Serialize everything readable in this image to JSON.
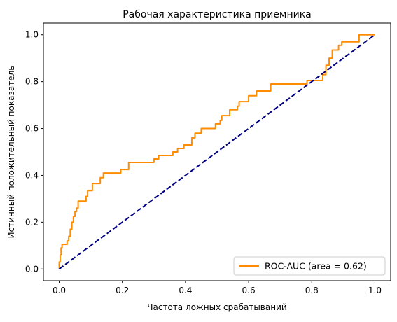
{
  "chart_data": {
    "type": "line",
    "title": "Рабочая характеристика приемника",
    "xlabel": "Частота ложных срабатываний",
    "ylabel": "Истинный положительный показатель",
    "xlim": [
      -0.05,
      1.05
    ],
    "ylim": [
      -0.05,
      1.05
    ],
    "xticks": [
      "0.0",
      "0.2",
      "0.4",
      "0.6",
      "0.8",
      "1.0"
    ],
    "yticks": [
      "0.0",
      "0.2",
      "0.4",
      "0.6",
      "0.8",
      "1.0"
    ],
    "grid": false,
    "legend_position": "lower-right",
    "series": [
      {
        "name": "ROC-AUC (area = 0.62)",
        "color": "#ff8c00",
        "style": "solid",
        "points": [
          [
            0.0,
            0.0
          ],
          [
            0.0,
            0.03
          ],
          [
            0.003,
            0.03
          ],
          [
            0.003,
            0.06
          ],
          [
            0.006,
            0.06
          ],
          [
            0.006,
            0.09
          ],
          [
            0.009,
            0.09
          ],
          [
            0.009,
            0.105
          ],
          [
            0.025,
            0.105
          ],
          [
            0.025,
            0.12
          ],
          [
            0.03,
            0.12
          ],
          [
            0.03,
            0.14
          ],
          [
            0.035,
            0.14
          ],
          [
            0.035,
            0.17
          ],
          [
            0.04,
            0.17
          ],
          [
            0.04,
            0.2
          ],
          [
            0.045,
            0.2
          ],
          [
            0.045,
            0.225
          ],
          [
            0.05,
            0.225
          ],
          [
            0.05,
            0.245
          ],
          [
            0.055,
            0.245
          ],
          [
            0.055,
            0.26
          ],
          [
            0.06,
            0.26
          ],
          [
            0.06,
            0.29
          ],
          [
            0.085,
            0.29
          ],
          [
            0.085,
            0.31
          ],
          [
            0.09,
            0.31
          ],
          [
            0.09,
            0.335
          ],
          [
            0.105,
            0.335
          ],
          [
            0.105,
            0.365
          ],
          [
            0.13,
            0.365
          ],
          [
            0.13,
            0.39
          ],
          [
            0.14,
            0.39
          ],
          [
            0.14,
            0.41
          ],
          [
            0.195,
            0.41
          ],
          [
            0.195,
            0.425
          ],
          [
            0.22,
            0.425
          ],
          [
            0.22,
            0.455
          ],
          [
            0.3,
            0.455
          ],
          [
            0.3,
            0.47
          ],
          [
            0.315,
            0.47
          ],
          [
            0.315,
            0.485
          ],
          [
            0.36,
            0.485
          ],
          [
            0.36,
            0.5
          ],
          [
            0.375,
            0.5
          ],
          [
            0.375,
            0.515
          ],
          [
            0.395,
            0.515
          ],
          [
            0.395,
            0.53
          ],
          [
            0.42,
            0.53
          ],
          [
            0.42,
            0.56
          ],
          [
            0.43,
            0.56
          ],
          [
            0.43,
            0.58
          ],
          [
            0.45,
            0.58
          ],
          [
            0.45,
            0.6
          ],
          [
            0.495,
            0.6
          ],
          [
            0.495,
            0.62
          ],
          [
            0.51,
            0.62
          ],
          [
            0.51,
            0.635
          ],
          [
            0.515,
            0.635
          ],
          [
            0.515,
            0.655
          ],
          [
            0.54,
            0.655
          ],
          [
            0.54,
            0.68
          ],
          [
            0.565,
            0.68
          ],
          [
            0.565,
            0.695
          ],
          [
            0.57,
            0.695
          ],
          [
            0.57,
            0.715
          ],
          [
            0.6,
            0.715
          ],
          [
            0.6,
            0.74
          ],
          [
            0.625,
            0.74
          ],
          [
            0.625,
            0.76
          ],
          [
            0.67,
            0.76
          ],
          [
            0.67,
            0.79
          ],
          [
            0.785,
            0.79
          ],
          [
            0.785,
            0.805
          ],
          [
            0.835,
            0.805
          ],
          [
            0.835,
            0.83
          ],
          [
            0.845,
            0.83
          ],
          [
            0.845,
            0.87
          ],
          [
            0.855,
            0.87
          ],
          [
            0.855,
            0.9
          ],
          [
            0.865,
            0.9
          ],
          [
            0.865,
            0.935
          ],
          [
            0.885,
            0.935
          ],
          [
            0.885,
            0.955
          ],
          [
            0.895,
            0.955
          ],
          [
            0.895,
            0.97
          ],
          [
            0.95,
            0.97
          ],
          [
            0.95,
            1.0
          ],
          [
            1.0,
            1.0
          ]
        ]
      },
      {
        "color": "#000080",
        "style": "dashed",
        "points": [
          [
            0.0,
            0.0
          ],
          [
            1.0,
            1.0
          ]
        ]
      }
    ]
  }
}
